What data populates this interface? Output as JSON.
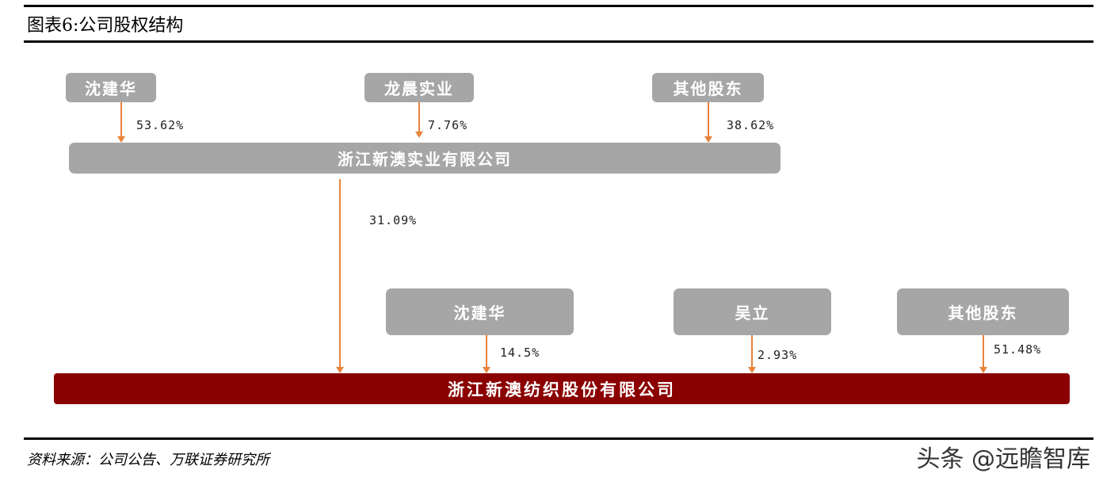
{
  "header": {
    "title": "图表6:公司股权结构"
  },
  "diagram": {
    "top_shareholders": [
      {
        "name": "沈建华",
        "pct": "53.62%"
      },
      {
        "name": "龙晨实业",
        "pct": "7.76%"
      },
      {
        "name": "其他股东",
        "pct": "38.62%"
      }
    ],
    "parent_company": {
      "name": "浙江新澳实业有限公司",
      "pct_to_main": "31.09%"
    },
    "second_shareholders": [
      {
        "name": "沈建华",
        "pct": "14.5%"
      },
      {
        "name": "吴立",
        "pct": "2.93%"
      },
      {
        "name": "其他股东",
        "pct": "51.48%"
      }
    ],
    "main_company": {
      "name": "浙江新澳纺织股份有限公司"
    }
  },
  "footer": {
    "source": "资料来源：公司公告、万联证券研究所",
    "watermark": "头条 @远瞻智库"
  },
  "colors": {
    "box_gray": "#a6a6a6",
    "main_red": "#8b0000",
    "arrow_orange": "#e8833a"
  }
}
